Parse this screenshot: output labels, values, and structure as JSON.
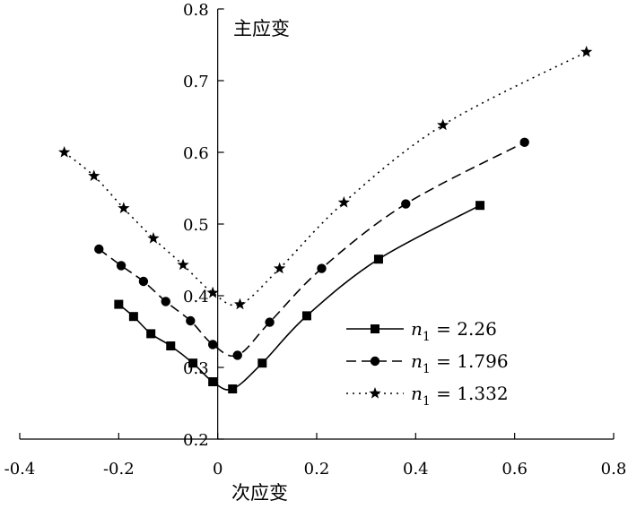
{
  "chart_data": {
    "type": "line",
    "xlabel": "次应变",
    "ylabel": "主应变",
    "xlim": [
      -0.4,
      0.8
    ],
    "ylim": [
      0.2,
      0.8
    ],
    "x_ticks": [
      "-0.4",
      "-0.2",
      "0",
      "0.2",
      "0.4",
      "0.6",
      "0.8"
    ],
    "y_ticks": [
      "0.2",
      "0.3",
      "0.4",
      "0.5",
      "0.6",
      "0.7",
      "0.8"
    ],
    "grid": false,
    "legend_position": "right-middle",
    "series": [
      {
        "name": "n1 = 2.26",
        "legend_symbol": "n",
        "legend_sub": "1",
        "legend_value": " = 2.26",
        "marker": "square",
        "dash": "solid",
        "points": [
          [
            -0.2,
            0.388
          ],
          [
            -0.17,
            0.371
          ],
          [
            -0.135,
            0.347
          ],
          [
            -0.095,
            0.33
          ],
          [
            -0.05,
            0.306
          ],
          [
            -0.01,
            0.28
          ],
          [
            0.03,
            0.27
          ],
          [
            0.09,
            0.306
          ],
          [
            0.18,
            0.372
          ],
          [
            0.325,
            0.451
          ],
          [
            0.53,
            0.526
          ]
        ]
      },
      {
        "name": "n1 = 1.796",
        "legend_symbol": "n",
        "legend_sub": "1",
        "legend_value": " = 1.796",
        "marker": "circle",
        "dash": "dashed",
        "points": [
          [
            -0.24,
            0.465
          ],
          [
            -0.195,
            0.442
          ],
          [
            -0.15,
            0.42
          ],
          [
            -0.105,
            0.392
          ],
          [
            -0.055,
            0.365
          ],
          [
            -0.01,
            0.332
          ],
          [
            0.04,
            0.317
          ],
          [
            0.105,
            0.363
          ],
          [
            0.21,
            0.438
          ],
          [
            0.38,
            0.528
          ],
          [
            0.62,
            0.614
          ]
        ]
      },
      {
        "name": "n1 = 1.332",
        "legend_symbol": "n",
        "legend_sub": "1",
        "legend_value": " = 1.332",
        "marker": "star",
        "dash": "dotted",
        "points": [
          [
            -0.31,
            0.6
          ],
          [
            -0.25,
            0.567
          ],
          [
            -0.19,
            0.522
          ],
          [
            -0.13,
            0.48
          ],
          [
            -0.07,
            0.443
          ],
          [
            -0.01,
            0.404
          ],
          [
            0.045,
            0.388
          ],
          [
            0.125,
            0.438
          ],
          [
            0.255,
            0.53
          ],
          [
            0.455,
            0.638
          ],
          [
            0.745,
            0.74
          ]
        ]
      }
    ]
  }
}
